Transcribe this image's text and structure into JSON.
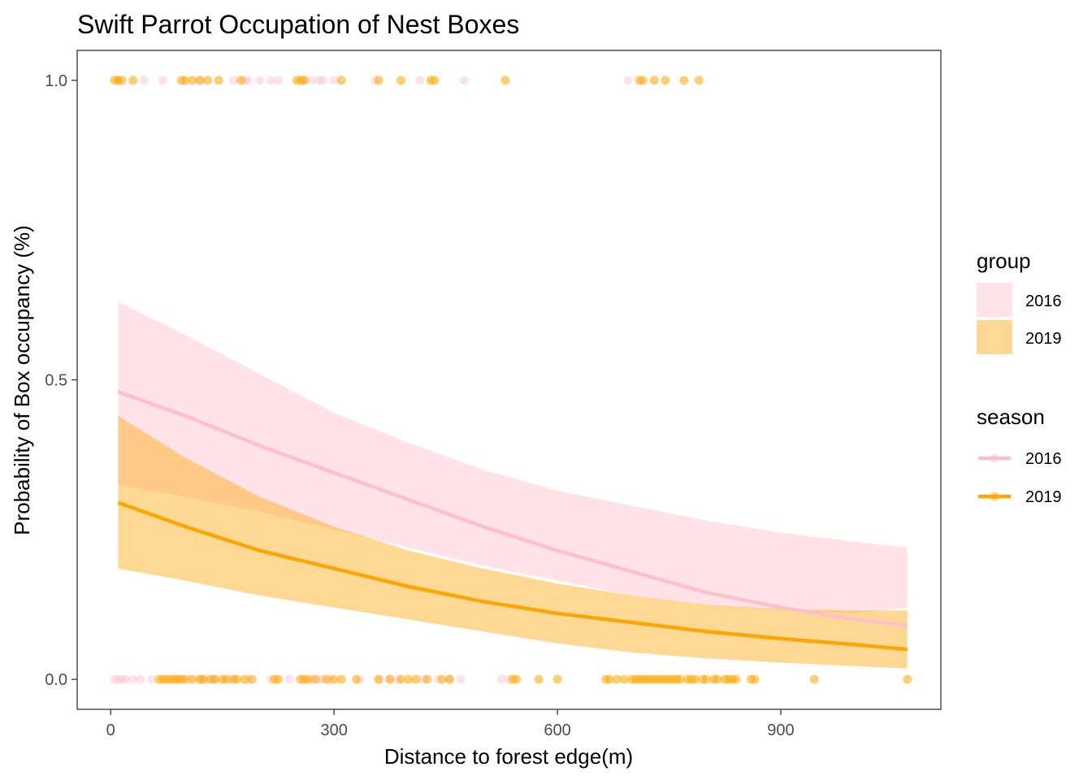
{
  "chart_data": {
    "type": "line",
    "title": "Swift Parrot Occupation of Nest Boxes",
    "xlabel": "Distance to forest edge(m)",
    "ylabel": "Probability of Box occupancy (%)",
    "xlim": [
      -45,
      1115
    ],
    "ylim": [
      -0.05,
      1.05
    ],
    "x_ticks": [
      0,
      300,
      600,
      900
    ],
    "x_tick_labels": [
      "0",
      "300",
      "600",
      "900"
    ],
    "y_ticks": [
      0.0,
      0.5,
      1.0
    ],
    "y_tick_labels": [
      "0.0",
      "0.5",
      "1.0"
    ],
    "grid": false,
    "legend_position": "right",
    "colors": {
      "2016": "#ffc0cb",
      "2019": "#ffa500"
    },
    "legends": [
      {
        "title": "group",
        "entries": [
          {
            "label": "2016",
            "color": "#ffc0cb"
          },
          {
            "label": "2019",
            "color": "#ffa500"
          }
        ]
      },
      {
        "title": "season",
        "entries": [
          {
            "label": "2016",
            "color": "#ffc0cb"
          },
          {
            "label": "2019",
            "color": "#ffa500"
          }
        ]
      }
    ],
    "series": [
      {
        "name": "2016",
        "color": "#ffc0cb",
        "x": [
          10,
          100,
          200,
          300,
          400,
          500,
          600,
          700,
          800,
          900,
          1000,
          1070
        ],
        "y": [
          0.48,
          0.44,
          0.39,
          0.345,
          0.3,
          0.255,
          0.215,
          0.18,
          0.145,
          0.12,
          0.1,
          0.09
        ],
        "ci_upper": [
          0.63,
          0.575,
          0.51,
          0.445,
          0.395,
          0.35,
          0.315,
          0.29,
          0.265,
          0.245,
          0.23,
          0.22
        ],
        "ci_lower": [
          0.325,
          0.305,
          0.28,
          0.25,
          0.22,
          0.19,
          0.165,
          0.14,
          0.125,
          0.115,
          0.11,
          0.12
        ],
        "points_occupied_x": [
          10,
          45,
          70,
          120,
          165,
          180,
          185,
          200,
          215,
          225,
          260,
          270,
          280,
          285,
          300,
          355,
          415,
          475,
          695
        ],
        "points_empty_x": [
          5,
          10,
          15,
          20,
          30,
          40,
          55,
          90,
          105,
          120,
          130,
          140,
          160,
          185,
          215,
          240,
          270,
          280,
          285,
          295,
          335,
          360,
          375,
          385,
          420,
          440,
          455,
          470,
          525,
          535
        ]
      },
      {
        "name": "2019",
        "color": "#ffa500",
        "x": [
          10,
          100,
          200,
          300,
          400,
          500,
          600,
          700,
          800,
          900,
          1000,
          1070
        ],
        "y": [
          0.295,
          0.255,
          0.215,
          0.185,
          0.155,
          0.13,
          0.11,
          0.095,
          0.08,
          0.068,
          0.058,
          0.05
        ],
        "ci_upper": [
          0.44,
          0.37,
          0.305,
          0.255,
          0.215,
          0.185,
          0.16,
          0.14,
          0.125,
          0.117,
          0.115,
          0.115
        ],
        "ci_lower": [
          0.185,
          0.165,
          0.14,
          0.12,
          0.1,
          0.08,
          0.06,
          0.045,
          0.035,
          0.028,
          0.022,
          0.018
        ],
        "points_occupied_x": [
          5,
          10,
          15,
          30,
          95,
          100,
          110,
          120,
          130,
          145,
          175,
          250,
          255,
          260,
          310,
          360,
          390,
          430,
          435,
          530,
          710,
          715,
          730,
          745,
          770,
          790
        ],
        "points_empty_x": [
          65,
          70,
          75,
          80,
          85,
          90,
          95,
          100,
          110,
          120,
          125,
          135,
          140,
          150,
          155,
          165,
          170,
          180,
          190,
          220,
          225,
          255,
          260,
          265,
          275,
          290,
          300,
          310,
          330,
          360,
          375,
          390,
          400,
          410,
          425,
          445,
          455,
          540,
          545,
          575,
          600,
          665,
          670,
          680,
          690,
          700,
          705,
          710,
          715,
          720,
          725,
          730,
          735,
          740,
          745,
          750,
          755,
          760,
          765,
          775,
          780,
          785,
          795,
          800,
          810,
          815,
          825,
          830,
          835,
          840,
          860,
          865,
          945,
          1070
        ]
      }
    ]
  }
}
